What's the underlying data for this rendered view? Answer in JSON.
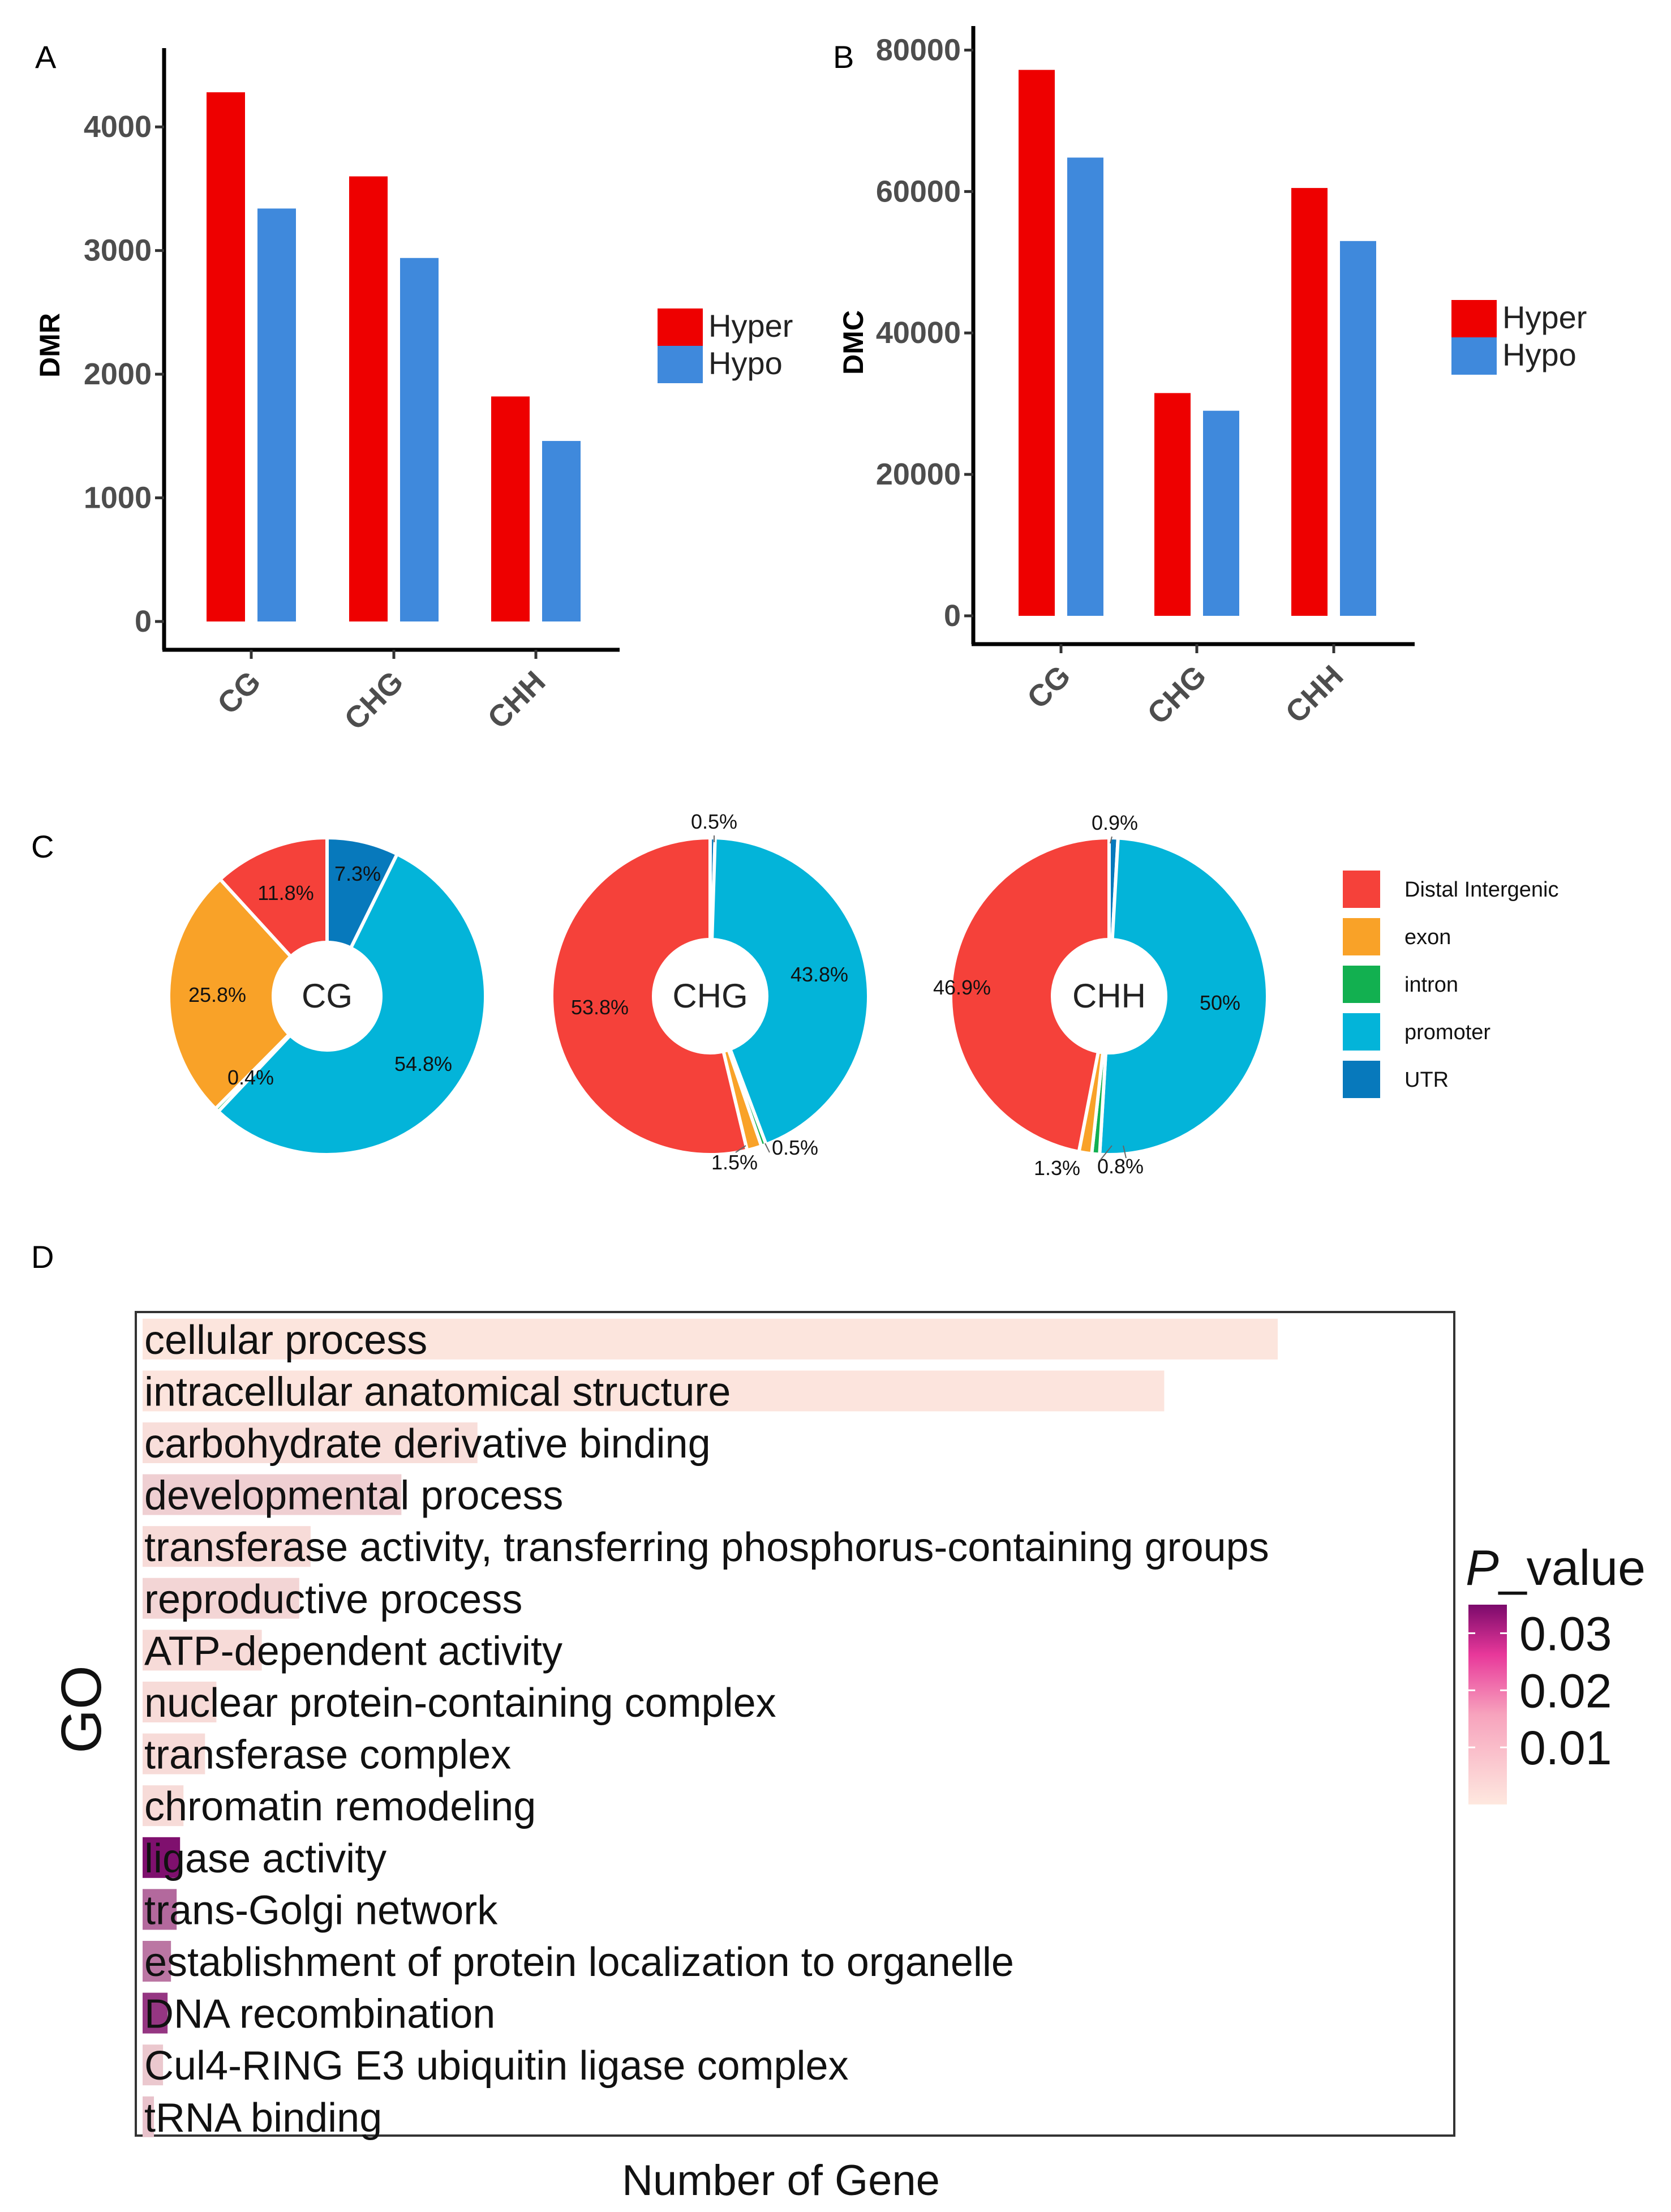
{
  "chart_data": [
    {
      "panel": "A",
      "type": "bar",
      "categories": [
        "CG",
        "CHG",
        "CHH"
      ],
      "series": [
        {
          "name": "Hyper",
          "color": "#ee0000",
          "values": [
            4280,
            3600,
            1820
          ]
        },
        {
          "name": "Hypo",
          "color": "#3f89dc",
          "values": [
            3340,
            2940,
            1460
          ]
        }
      ],
      "ylabel": "DMR",
      "ylim": [
        0,
        4500
      ],
      "yticks": [
        "0",
        "1000",
        "2000",
        "3000",
        "4000"
      ],
      "ytick_values": [
        0,
        1000,
        2000,
        3000,
        4000
      ],
      "legend_position": "right"
    },
    {
      "panel": "B",
      "type": "bar",
      "categories": [
        "CG",
        "CHG",
        "CHH"
      ],
      "series": [
        {
          "name": "Hyper",
          "color": "#ee0000",
          "values": [
            77200,
            31500,
            60500
          ]
        },
        {
          "name": "Hypo",
          "color": "#3f89dc",
          "values": [
            64800,
            29000,
            53000
          ]
        }
      ],
      "ylabel": "DMC",
      "ylim": [
        0,
        81000
      ],
      "yticks": [
        "0",
        "20000",
        "40000",
        "60000",
        "80000"
      ],
      "ytick_values": [
        0,
        20000,
        40000,
        60000,
        80000
      ],
      "legend_position": "right"
    },
    {
      "panel": "C",
      "type": "pie",
      "variant": "donut",
      "legend": [
        {
          "name": "Distal Intergenic",
          "color": "#f5413a"
        },
        {
          "name": "exon",
          "color": "#f9a228"
        },
        {
          "name": "intron",
          "color": "#12b050"
        },
        {
          "name": "promoter",
          "color": "#03b4d9"
        },
        {
          "name": "UTR",
          "color": "#0779bc"
        }
      ],
      "charts": [
        {
          "center": "CG",
          "slices": [
            {
              "name": "UTR",
              "value": 7.3,
              "label": "7.3%"
            },
            {
              "name": "promoter",
              "value": 54.8,
              "label": "54.8%"
            },
            {
              "name": "intron",
              "value": 0.4,
              "label": "0.4%"
            },
            {
              "name": "exon",
              "value": 25.8,
              "label": "25.8%"
            },
            {
              "name": "Distal Intergenic",
              "value": 11.8,
              "label": "11.8%"
            }
          ]
        },
        {
          "center": "CHG",
          "slices": [
            {
              "name": "UTR",
              "value": 0.5,
              "label": "0.5%"
            },
            {
              "name": "promoter",
              "value": 43.8,
              "label": "43.8%"
            },
            {
              "name": "intron",
              "value": 0.5,
              "label": "0.5%"
            },
            {
              "name": "exon",
              "value": 1.5,
              "label": "1.5%"
            },
            {
              "name": "Distal Intergenic",
              "value": 53.8,
              "label": "53.8%"
            }
          ]
        },
        {
          "center": "CHH",
          "slices": [
            {
              "name": "UTR",
              "value": 0.9,
              "label": "0.9%"
            },
            {
              "name": "promoter",
              "value": 50,
              "label": "50%"
            },
            {
              "name": "intron",
              "value": 0.8,
              "label": "0.8%"
            },
            {
              "name": "exon",
              "value": 1.3,
              "label": "1.3%"
            },
            {
              "name": "Distal Intergenic",
              "value": 46.9,
              "label": "46.9%"
            }
          ]
        }
      ]
    },
    {
      "panel": "D",
      "type": "bar",
      "orientation": "horizontal",
      "xlabel": "Number of Gene",
      "ylabel": "GO",
      "xlim": [
        0,
        1000
      ],
      "colorbar": {
        "title_italic": "P",
        "title_rest": "_value",
        "ticks": [
          "0.03",
          "0.02",
          "0.01"
        ],
        "tick_values": [
          0.03,
          0.02,
          0.01
        ],
        "range": [
          0,
          0.035
        ],
        "low_color": "#fee8df",
        "high_color": "#7b0a6b"
      },
      "categories": [
        "cellular process",
        "intracellular anatomical structure",
        "carbohydrate derivative binding",
        "developmental process",
        "transferase activity, transferring phosphorus-containing groups",
        "reproductive process",
        "ATP-dependent activity",
        "nuclear protein-containing complex",
        "transferase complex",
        "chromatin remodeling",
        "ligase activity",
        "trans-Golgi network",
        "establishment of protein localization to organelle",
        "DNA recombination",
        "Cul4-RING E3 ubiquitin ligase complex",
        "tRNA binding"
      ],
      "values": [
        1000,
        900,
        295,
        228,
        148,
        138,
        105,
        65,
        55,
        36,
        33,
        30,
        25,
        22,
        18,
        10
      ],
      "p_values": [
        0.0005,
        0.0006,
        0.0015,
        0.004,
        0.002,
        0.003,
        0.002,
        0.002,
        0.002,
        0.002,
        0.034,
        0.02,
        0.018,
        0.028,
        0.005,
        0.006
      ]
    }
  ],
  "panels": {
    "a": "A",
    "b": "B",
    "c": "C",
    "d": "D"
  }
}
